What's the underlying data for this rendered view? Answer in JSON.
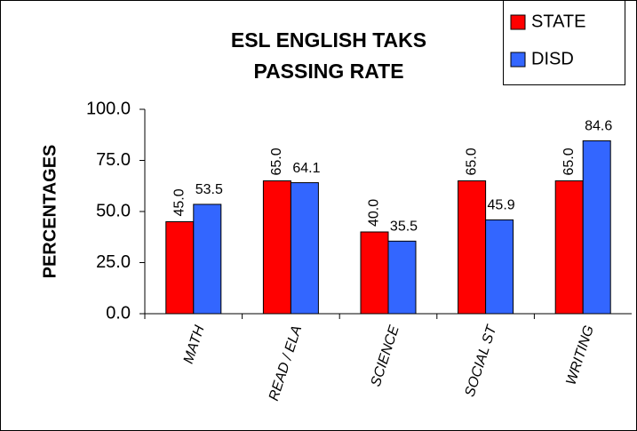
{
  "chart_data": {
    "type": "bar",
    "title": "ESL ENGLISH TAKS PASSING RATE",
    "y_label": "PERCENTAGES",
    "categories": [
      "MATH",
      "READ / ELA",
      "SCIENCE",
      "SOCIAL ST",
      "WRITING"
    ],
    "series": [
      {
        "name": "STATE",
        "color": "#ff0000",
        "values": [
          45,
          65,
          40,
          65,
          65
        ],
        "value_labels": [
          "45.0",
          "65.0",
          "40.0",
          "65.0",
          "65.0"
        ]
      },
      {
        "name": "DISD",
        "color": "#3366ff",
        "values": [
          53.5,
          64.1,
          35.5,
          45.9,
          84.6
        ],
        "value_labels": [
          "53.5",
          "64.1",
          "35.5",
          "45.9",
          "84.6"
        ]
      }
    ],
    "ylim": [
      0,
      100
    ],
    "yticks": [
      {
        "value": 0,
        "label": "0.0"
      },
      {
        "value": 25,
        "label": "25.0"
      },
      {
        "value": 50,
        "label": "50.0"
      },
      {
        "value": 75,
        "label": "75.0"
      },
      {
        "value": 100,
        "label": "100.0"
      }
    ],
    "grid": false,
    "legend": "top-right"
  }
}
